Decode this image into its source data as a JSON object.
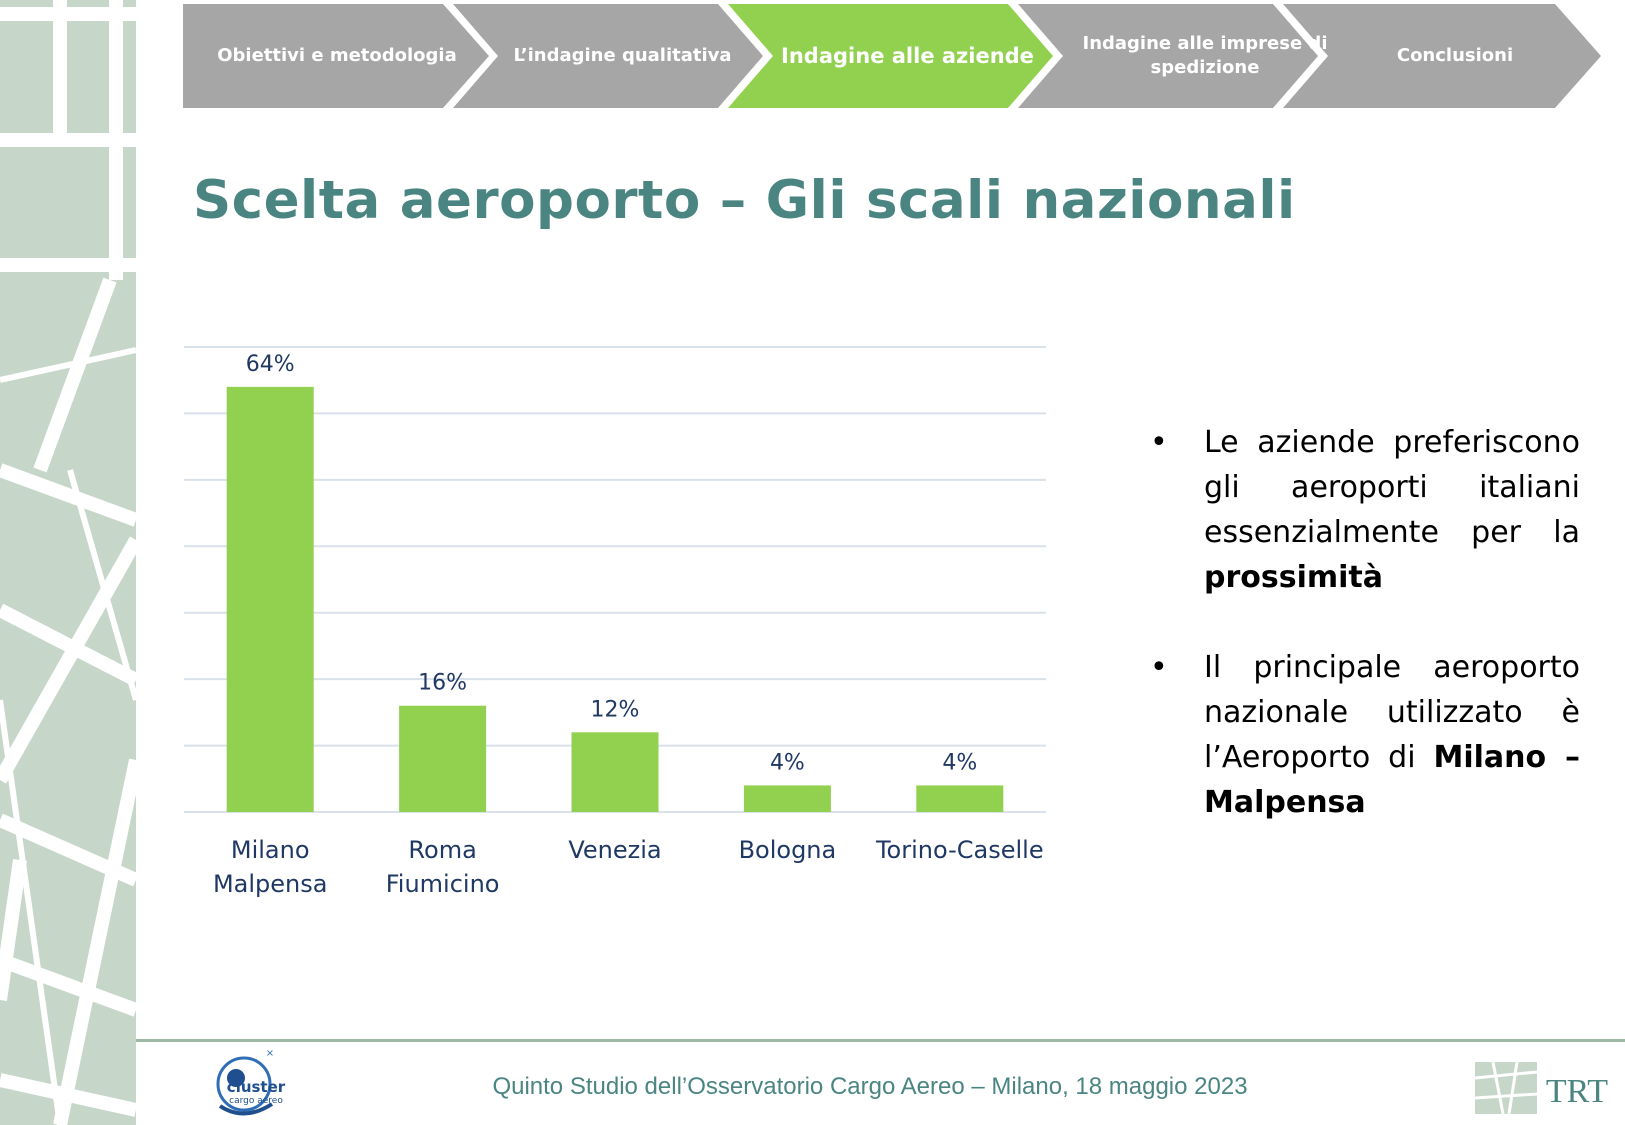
{
  "nav": {
    "steps": [
      {
        "label": "Obiettivi e metodologia"
      },
      {
        "label": "L’indagine qualitativa"
      },
      {
        "label": "Indagine alle aziende"
      },
      {
        "label": "Indagine alle imprese di spedizione"
      },
      {
        "label": "Conclusioni"
      }
    ],
    "active_index": 2
  },
  "title": "Scelta aeroporto – Gli scali nazionali",
  "chart_data": {
    "type": "bar",
    "categories": [
      "Milano Malpensa",
      "Roma Fiumicino",
      "Venezia",
      "Bologna",
      "Torino-Caselle"
    ],
    "values": [
      64,
      16,
      12,
      4,
      4
    ],
    "data_labels": [
      "64%",
      "16%",
      "12%",
      "4%",
      "4%"
    ],
    "ylim": [
      0,
      70
    ],
    "grid": true,
    "bar_color": "#92d050"
  },
  "bullets": [
    {
      "text": "Le aziende preferiscono gli aeroporti italiani essenzialmente per la ",
      "bold": "prossimità",
      "after": ""
    },
    {
      "text": "Il principale aeroporto nazionale utilizzato è l’Aeroporto di ",
      "bold": "Milano – Malpensa",
      "after": ""
    }
  ],
  "footer": {
    "text": "Quinto Studio dell’Osservatorio Cargo Aereo – Milano, 18 maggio 2023",
    "logo_left": "cluster cargo aereo",
    "logo_right": "TRT"
  },
  "colors": {
    "accent_green": "#92d050",
    "nav_gray": "#a6a6a6",
    "title_teal": "#4a8582",
    "label_navy": "#1f3864"
  }
}
